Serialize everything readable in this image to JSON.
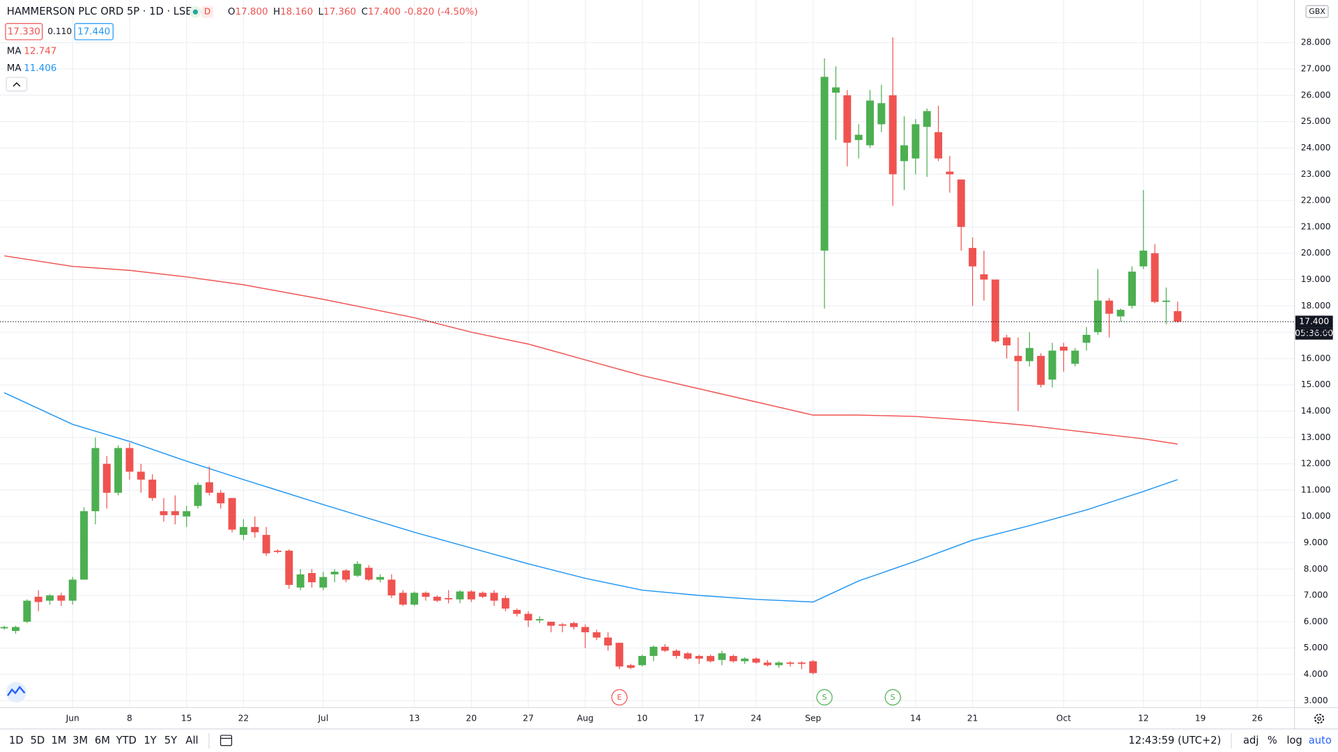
{
  "header": {
    "symbol": "HAMMERSON PLC ORD 5P · 1D · LSE",
    "badge": "D",
    "ohlc": [
      {
        "letter": "O",
        "value": "17.800"
      },
      {
        "letter": "H",
        "value": "18.160"
      },
      {
        "letter": "L",
        "value": "17.360"
      },
      {
        "letter": "C",
        "value": "17.400"
      }
    ],
    "change": "-0.820 (-4.50%)",
    "bid": "17.330",
    "spread": "0.110",
    "ask": "17.440"
  },
  "chart_data": {
    "type": "candlestick",
    "up_color": "#4caf50",
    "down_color": "#ef5350",
    "grid": true,
    "currency": "GBX",
    "x": [
      0,
      1,
      2,
      3,
      4,
      5,
      6,
      7,
      8,
      9,
      10,
      11,
      12,
      13,
      14,
      15,
      16,
      17,
      18,
      19,
      20,
      21,
      22,
      23,
      24,
      25,
      26,
      27,
      28,
      29,
      30,
      31,
      32,
      33,
      34,
      35,
      36,
      37,
      38,
      39,
      40,
      41,
      42,
      43,
      44,
      45,
      46,
      47,
      48,
      49,
      50,
      51,
      52,
      53,
      54,
      55,
      56,
      57,
      58,
      59,
      60,
      61,
      62,
      63,
      64,
      65,
      66,
      67,
      68,
      69,
      70,
      71,
      72,
      73,
      74,
      75,
      76,
      77,
      78,
      79,
      80,
      81,
      82,
      83,
      84,
      85,
      86,
      87,
      88,
      89,
      90,
      91,
      92,
      93,
      94,
      95,
      96,
      97,
      98,
      99,
      100,
      101,
      102,
      103
    ],
    "open": [
      5.75,
      5.65,
      6.0,
      6.95,
      6.8,
      7.0,
      6.8,
      7.6,
      10.2,
      12.0,
      10.9,
      12.6,
      11.7,
      11.4,
      10.2,
      10.2,
      10.0,
      10.4,
      11.3,
      10.9,
      10.7,
      9.3,
      9.6,
      9.3,
      8.7,
      8.7,
      7.3,
      7.85,
      7.3,
      7.8,
      7.95,
      7.75,
      8.05,
      7.6,
      7.6,
      7.1,
      6.65,
      7.1,
      6.95,
      6.9,
      6.85,
      7.15,
      7.1,
      7.1,
      6.9,
      6.45,
      6.3,
      6.05,
      6.0,
      5.9,
      5.95,
      5.8,
      5.6,
      5.4,
      5.2,
      4.35,
      4.35,
      4.7,
      5.05,
      4.9,
      4.8,
      4.7,
      4.7,
      4.55,
      4.7,
      4.5,
      4.6,
      4.45,
      4.35,
      4.45,
      4.45,
      4.5,
      20.1,
      26.1,
      26.0,
      24.3,
      24.1,
      24.9,
      26.0,
      23.5,
      23.6,
      24.8,
      24.6,
      23.1,
      22.8,
      20.2,
      19.2,
      19.0,
      16.8,
      16.1,
      15.9,
      16.1,
      15.2,
      16.45,
      15.8,
      16.6,
      17.0,
      18.2,
      17.6,
      18.0,
      19.5,
      20.0,
      18.15,
      17.8
    ],
    "high": [
      5.85,
      5.85,
      6.85,
      7.2,
      7.05,
      7.1,
      7.7,
      10.35,
      13.0,
      12.3,
      12.7,
      12.8,
      12.0,
      11.6,
      10.7,
      10.8,
      10.4,
      11.3,
      11.9,
      11.0,
      10.7,
      9.9,
      10.0,
      9.6,
      8.75,
      8.75,
      8.0,
      8.0,
      7.9,
      8.0,
      8.0,
      8.3,
      8.15,
      7.8,
      7.8,
      7.2,
      7.15,
      7.15,
      7.0,
      7.2,
      7.2,
      7.2,
      7.15,
      7.2,
      7.0,
      6.5,
      6.4,
      6.2,
      6.0,
      5.95,
      6.0,
      5.9,
      5.7,
      5.6,
      5.2,
      4.4,
      4.75,
      5.1,
      5.15,
      4.95,
      4.85,
      4.75,
      4.75,
      4.9,
      4.75,
      4.65,
      4.65,
      4.55,
      4.5,
      4.5,
      4.5,
      4.55,
      27.4,
      27.1,
      26.2,
      24.9,
      26.2,
      26.4,
      28.2,
      25.2,
      25.1,
      25.5,
      25.6,
      23.7,
      22.8,
      20.6,
      20.1,
      19.0,
      16.9,
      16.8,
      17.0,
      16.2,
      16.6,
      16.6,
      16.4,
      17.2,
      19.4,
      18.3,
      17.9,
      19.5,
      22.4,
      20.35,
      18.7,
      18.16
    ],
    "low": [
      5.7,
      5.55,
      5.95,
      6.4,
      6.65,
      6.6,
      6.65,
      7.6,
      9.7,
      10.3,
      10.8,
      11.4,
      10.9,
      10.6,
      9.8,
      9.7,
      9.6,
      10.3,
      10.8,
      10.3,
      9.4,
      9.1,
      9.2,
      8.5,
      8.6,
      7.25,
      7.2,
      7.3,
      7.2,
      7.5,
      7.5,
      7.7,
      7.55,
      7.5,
      6.9,
      6.6,
      6.6,
      6.8,
      6.75,
      6.7,
      6.7,
      6.75,
      6.9,
      6.6,
      6.4,
      6.2,
      5.8,
      5.95,
      5.6,
      5.6,
      5.7,
      5.0,
      5.3,
      4.9,
      4.2,
      4.2,
      4.3,
      4.5,
      4.85,
      4.6,
      4.55,
      4.4,
      4.45,
      4.35,
      4.45,
      4.4,
      4.4,
      4.3,
      4.25,
      4.3,
      4.2,
      4.0,
      17.9,
      24.3,
      23.3,
      23.6,
      24.0,
      24.6,
      21.8,
      22.4,
      23.0,
      22.9,
      23.5,
      22.3,
      20.1,
      18.0,
      18.2,
      16.6,
      16.0,
      14.0,
      15.7,
      14.9,
      14.9,
      15.5,
      15.7,
      16.3,
      16.9,
      16.8,
      17.4,
      17.9,
      19.4,
      18.1,
      17.3,
      17.36
    ],
    "close": [
      5.8,
      5.8,
      6.8,
      6.75,
      7.0,
      6.8,
      7.6,
      10.2,
      12.6,
      10.9,
      12.6,
      11.7,
      11.4,
      10.7,
      10.05,
      10.05,
      10.2,
      11.2,
      10.9,
      10.5,
      9.5,
      9.6,
      9.4,
      8.6,
      8.65,
      7.4,
      7.8,
      7.5,
      7.7,
      7.9,
      7.6,
      8.2,
      7.6,
      7.7,
      7.0,
      6.65,
      7.1,
      6.95,
      6.8,
      6.85,
      7.15,
      6.85,
      6.95,
      6.8,
      6.5,
      6.3,
      6.05,
      6.1,
      5.85,
      5.85,
      5.8,
      5.6,
      5.4,
      5.1,
      4.3,
      4.25,
      4.7,
      5.05,
      4.9,
      4.7,
      4.6,
      4.6,
      4.5,
      4.8,
      4.5,
      4.6,
      4.45,
      4.35,
      4.45,
      4.4,
      4.4,
      4.05,
      26.7,
      26.3,
      24.2,
      24.5,
      25.8,
      25.7,
      23.0,
      24.1,
      24.9,
      25.4,
      23.6,
      23.0,
      21.0,
      19.5,
      19.0,
      16.65,
      16.5,
      15.9,
      16.4,
      15.0,
      16.3,
      16.3,
      16.3,
      16.9,
      18.2,
      17.7,
      17.85,
      19.3,
      20.1,
      18.15,
      18.2,
      17.4
    ],
    "series": [
      {
        "name": "MA",
        "last": 12.747,
        "color": "#ef5350",
        "x": [
          0,
          6,
          11,
          16,
          21,
          28,
          36,
          41,
          46,
          51,
          56,
          61,
          66,
          71,
          75,
          80,
          85,
          90,
          95,
          100,
          103
        ],
        "values": [
          19.9,
          19.5,
          19.35,
          19.1,
          18.8,
          18.25,
          17.55,
          17.0,
          16.55,
          15.95,
          15.35,
          14.85,
          14.35,
          13.85,
          13.85,
          13.8,
          13.65,
          13.45,
          13.2,
          12.95,
          12.75
        ]
      },
      {
        "name": "MA",
        "last": 11.406,
        "color": "#2196f3",
        "x": [
          0,
          6,
          11,
          16,
          21,
          28,
          36,
          41,
          46,
          51,
          56,
          61,
          66,
          71,
          75,
          80,
          85,
          90,
          95,
          100,
          103
        ],
        "values": [
          14.7,
          13.5,
          12.85,
          12.1,
          11.4,
          10.45,
          9.4,
          8.8,
          8.2,
          7.65,
          7.2,
          7.0,
          6.85,
          6.75,
          7.55,
          8.3,
          9.1,
          9.65,
          10.25,
          10.95,
          11.4
        ]
      }
    ],
    "xlim": [
      -0.375,
      113.26
    ],
    "xticks": [
      {
        "value": 6,
        "label": "Jun"
      },
      {
        "value": 11,
        "label": "8"
      },
      {
        "value": 16,
        "label": "15"
      },
      {
        "value": 21,
        "label": "22"
      },
      {
        "value": 28,
        "label": "Jul"
      },
      {
        "value": 36,
        "label": "13"
      },
      {
        "value": 41,
        "label": "20"
      },
      {
        "value": 46,
        "label": "27"
      },
      {
        "value": 51,
        "label": "Aug"
      },
      {
        "value": 56,
        "label": "10"
      },
      {
        "value": 61,
        "label": "17"
      },
      {
        "value": 66,
        "label": "24"
      },
      {
        "value": 71,
        "label": "Sep"
      },
      {
        "value": 80,
        "label": "14"
      },
      {
        "value": 85,
        "label": "21"
      },
      {
        "value": 93,
        "label": "Oct"
      },
      {
        "value": 100,
        "label": "12"
      },
      {
        "value": 105,
        "label": "19"
      },
      {
        "value": 110,
        "label": "26"
      }
    ],
    "ylim": [
      2.74,
      29.62
    ],
    "yticks": [
      {
        "value": 3,
        "label": "3.000"
      },
      {
        "value": 4,
        "label": "4.000"
      },
      {
        "value": 5,
        "label": "5.000"
      },
      {
        "value": 6,
        "label": "6.000"
      },
      {
        "value": 7,
        "label": "7.000"
      },
      {
        "value": 8,
        "label": "8.000"
      },
      {
        "value": 9,
        "label": "9.000"
      },
      {
        "value": 10,
        "label": "10.000"
      },
      {
        "value": 11,
        "label": "11.000"
      },
      {
        "value": 12,
        "label": "12.000"
      },
      {
        "value": 13,
        "label": "13.000"
      },
      {
        "value": 14,
        "label": "14.000"
      },
      {
        "value": 15,
        "label": "15.000"
      },
      {
        "value": 16,
        "label": "16.000"
      },
      {
        "value": 17,
        "label": "17.000"
      },
      {
        "value": 18,
        "label": "18.000"
      },
      {
        "value": 19,
        "label": "19.000"
      },
      {
        "value": 20,
        "label": "20.000"
      },
      {
        "value": 21,
        "label": "21.000"
      },
      {
        "value": 22,
        "label": "22.000"
      },
      {
        "value": 23,
        "label": "23.000"
      },
      {
        "value": 24,
        "label": "24.000"
      },
      {
        "value": 25,
        "label": "25.000"
      },
      {
        "value": 26,
        "label": "26.000"
      },
      {
        "value": 27,
        "label": "27.000"
      },
      {
        "value": 28,
        "label": "28.000"
      }
    ],
    "last_price": {
      "value": 17.4,
      "label": "17.400"
    },
    "countdown": "05:36:00",
    "events": [
      {
        "label": "E",
        "x": 54,
        "color": "#ef5350"
      },
      {
        "label": "S",
        "x": 72,
        "color": "#4caf50"
      },
      {
        "label": "S",
        "x": 78,
        "color": "#4caf50"
      }
    ]
  },
  "toolbar": {
    "ranges": [
      "1D",
      "5D",
      "1M",
      "3M",
      "6M",
      "YTD",
      "1Y",
      "5Y",
      "All"
    ],
    "time": "12:43:59 (UTC+2)",
    "options": [
      "adj",
      "%",
      "log",
      "auto"
    ]
  }
}
